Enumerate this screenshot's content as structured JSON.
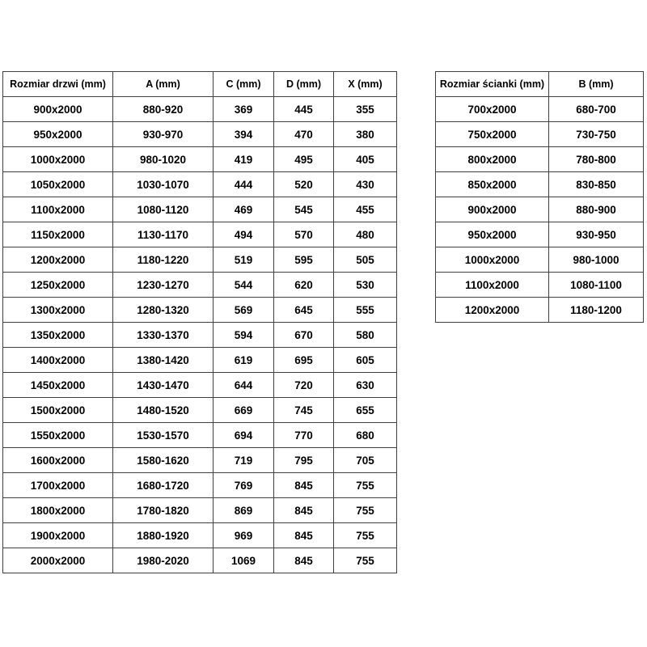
{
  "page": {
    "background_color": "#ffffff",
    "border_color": "#404040",
    "text_color": "#000000"
  },
  "door_table": {
    "name": "door-size-dimensions",
    "columns": [
      "Rozmiar drzwi (mm)",
      "A (mm)",
      "C (mm)",
      "D (mm)",
      "X (mm)"
    ],
    "rows": [
      [
        "900x2000",
        "880-920",
        "369",
        "445",
        "355"
      ],
      [
        "950x2000",
        "930-970",
        "394",
        "470",
        "380"
      ],
      [
        "1000x2000",
        "980-1020",
        "419",
        "495",
        "405"
      ],
      [
        "1050x2000",
        "1030-1070",
        "444",
        "520",
        "430"
      ],
      [
        "1100x2000",
        "1080-1120",
        "469",
        "545",
        "455"
      ],
      [
        "1150x2000",
        "1130-1170",
        "494",
        "570",
        "480"
      ],
      [
        "1200x2000",
        "1180-1220",
        "519",
        "595",
        "505"
      ],
      [
        "1250x2000",
        "1230-1270",
        "544",
        "620",
        "530"
      ],
      [
        "1300x2000",
        "1280-1320",
        "569",
        "645",
        "555"
      ],
      [
        "1350x2000",
        "1330-1370",
        "594",
        "670",
        "580"
      ],
      [
        "1400x2000",
        "1380-1420",
        "619",
        "695",
        "605"
      ],
      [
        "1450x2000",
        "1430-1470",
        "644",
        "720",
        "630"
      ],
      [
        "1500x2000",
        "1480-1520",
        "669",
        "745",
        "655"
      ],
      [
        "1550x2000",
        "1530-1570",
        "694",
        "770",
        "680"
      ],
      [
        "1600x2000",
        "1580-1620",
        "719",
        "795",
        "705"
      ],
      [
        "1700x2000",
        "1680-1720",
        "769",
        "845",
        "755"
      ],
      [
        "1800x2000",
        "1780-1820",
        "869",
        "845",
        "755"
      ],
      [
        "1900x2000",
        "1880-1920",
        "969",
        "845",
        "755"
      ],
      [
        "2000x2000",
        "1980-2020",
        "1069",
        "845",
        "755"
      ]
    ]
  },
  "wall_table": {
    "name": "wall-size-dimensions",
    "columns": [
      "Rozmiar ścianki (mm)",
      "B (mm)"
    ],
    "rows": [
      [
        "700x2000",
        "680-700"
      ],
      [
        "750x2000",
        "730-750"
      ],
      [
        "800x2000",
        "780-800"
      ],
      [
        "850x2000",
        "830-850"
      ],
      [
        "900x2000",
        "880-900"
      ],
      [
        "950x2000",
        "930-950"
      ],
      [
        "1000x2000",
        "980-1000"
      ],
      [
        "1100x2000",
        "1080-1100"
      ],
      [
        "1200x2000",
        "1180-1200"
      ]
    ]
  }
}
